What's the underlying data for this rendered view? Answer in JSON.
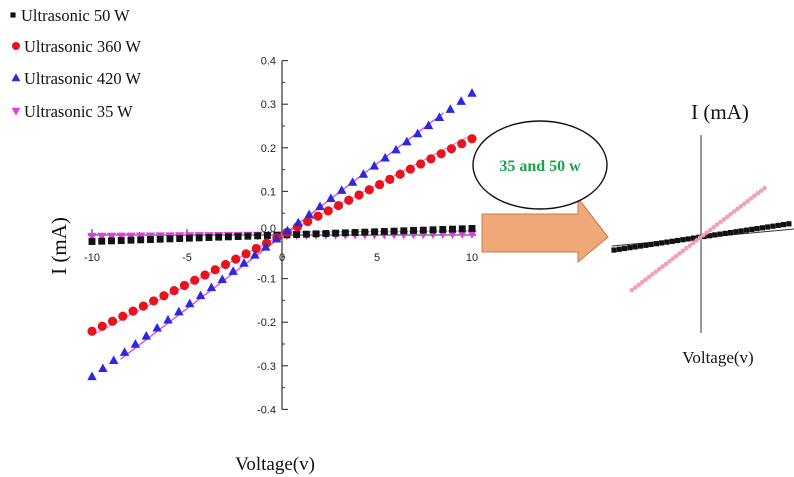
{
  "chart_data": {
    "type": "scatter",
    "title": "",
    "xlabel": "Voltage(v)",
    "ylabel": "I (mA)",
    "xlim": [
      -10,
      10
    ],
    "ylim": [
      -0.4,
      0.4
    ],
    "x_ticks": [
      -10,
      -5,
      0,
      5,
      10
    ],
    "y_ticks": [
      -0.4,
      -0.3,
      -0.2,
      -0.1,
      0.0,
      0.1,
      0.2,
      0.3,
      0.4
    ],
    "x_tick_labels": [
      "-10",
      "-5",
      "0",
      "5",
      "10"
    ],
    "y_tick_labels": [
      "-0.4",
      "-0.3",
      "-0.2",
      "-0.1",
      "0.0",
      "0.1",
      "0.2",
      "0.3",
      "0.4"
    ],
    "legend_position": "top-left",
    "series": [
      {
        "name": "Ultrasonic 50 W",
        "marker": "square",
        "color": "#111111",
        "x_start": -10,
        "x_end": 10,
        "points": 40,
        "slope": 0.0015
      },
      {
        "name": "Ultrasonic 360 W",
        "marker": "circle",
        "color": "#e8141c",
        "x_start": -10,
        "x_end": 10,
        "points": 38,
        "slope": 0.023
      },
      {
        "name": "Ultrasonic 420 W",
        "marker": "triangle-up",
        "color": "#2b28e0",
        "x_start": -10,
        "x_end": 10,
        "points": 36,
        "slope": 0.0325
      },
      {
        "name": "Ultrasonic 35 W",
        "marker": "triangle-down",
        "color": "#e63ce6",
        "x_start": -10,
        "x_end": 10,
        "points": 40,
        "slope": 0.0003
      }
    ],
    "annotation": {
      "text": "35 and 50 w",
      "color": "#1aa34a"
    },
    "inset": {
      "ylabel": "I (mA)",
      "xlabel": "Voltage(v)",
      "series": [
        {
          "name": "Ultrasonic 50 W",
          "color": "#111111",
          "marker": "square",
          "slope": 0.45
        },
        {
          "name": "Ultrasonic 35 W",
          "color": "#f2a0bc",
          "marker": "circle",
          "slope": 1.35
        }
      ]
    },
    "colors": {
      "arrow": "#f0a878",
      "arrow_edge": "#c8784a",
      "fit_line": "#e63ce6",
      "zero_line": "#2fb34a"
    }
  }
}
